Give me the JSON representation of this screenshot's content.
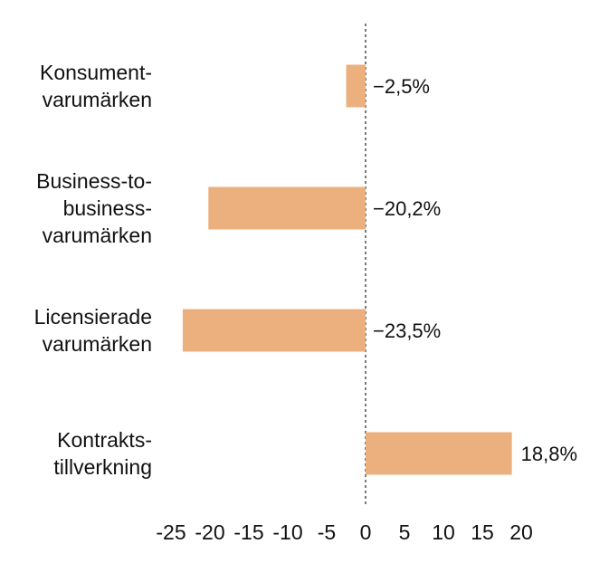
{
  "chart_data": {
    "type": "bar",
    "orientation": "horizontal",
    "title": "",
    "xlabel": "",
    "ylabel": "",
    "categories": [
      [
        "Konsument-",
        "varumärken"
      ],
      [
        "Business-to-",
        "business-",
        "varumärken"
      ],
      [
        "Licensierade",
        "varumärken"
      ],
      [
        "Kontrakts-",
        "tillverkning"
      ]
    ],
    "values": [
      -2.5,
      -20.2,
      -23.5,
      18.8
    ],
    "value_labels": [
      "−2,5%",
      "−20,2%",
      "−23,5%",
      "18,8%"
    ],
    "xlim": [
      -25,
      20
    ],
    "xticks": [
      "-25",
      "-20",
      "-15",
      "-10",
      "-5",
      "0",
      "5",
      "10",
      "15",
      "20"
    ],
    "tick_values": [
      -25,
      -20,
      -15,
      -10,
      -5,
      0,
      5,
      10,
      15,
      20
    ],
    "bar_color": "#EBB07E",
    "zero_line": "dashed",
    "grid": false,
    "legend": "none"
  }
}
